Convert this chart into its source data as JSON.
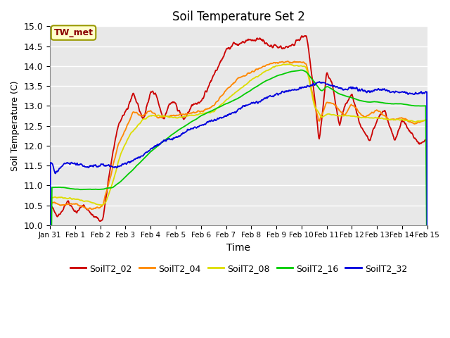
{
  "title": "Soil Temperature Set 2",
  "xlabel": "Time",
  "ylabel": "Soil Temperature (C)",
  "ylim": [
    10.0,
    15.0
  ],
  "yticks": [
    10.0,
    10.5,
    11.0,
    11.5,
    12.0,
    12.5,
    13.0,
    13.5,
    14.0,
    14.5,
    15.0
  ],
  "bg_color": "#e8e8e8",
  "plot_bg": "#e8e8e8",
  "annotation_text": "TW_met",
  "annotation_color": "#8B0000",
  "annotation_bg": "#ffffcc",
  "annotation_border": "#999900",
  "series_colors": {
    "SoilT2_02": "#cc0000",
    "SoilT2_04": "#ff8800",
    "SoilT2_08": "#dddd00",
    "SoilT2_16": "#00cc00",
    "SoilT2_32": "#0000dd"
  },
  "legend_labels": [
    "SoilT2_02",
    "SoilT2_04",
    "SoilT2_08",
    "SoilT2_16",
    "SoilT2_32"
  ],
  "x_start_day": 31,
  "x_end_day": 46,
  "xtick_days": [
    31,
    32,
    33,
    34,
    35,
    36,
    37,
    38,
    39,
    40,
    41,
    42,
    43,
    44,
    45,
    46
  ],
  "xtick_labels": [
    "Jan 31",
    "Feb 1",
    "Feb 2",
    "Feb 3",
    "Feb 4",
    "Feb 5",
    "Feb 6",
    "Feb 7",
    "Feb 8",
    "Feb 9",
    "Feb 10",
    "Feb 11",
    "Feb 12",
    "Feb 13",
    "Feb 14",
    "Feb 15"
  ]
}
